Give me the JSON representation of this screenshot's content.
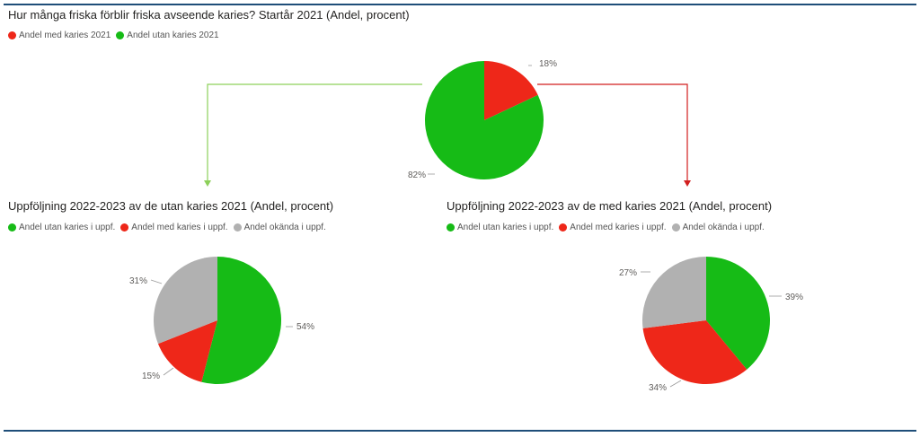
{
  "colors": {
    "green": "#16bb16",
    "red": "#ee2719",
    "gray": "#b1b1b1",
    "rule": "#1f4e79",
    "arrow_left": "#8dd05a",
    "arrow_right": "#d21f1f"
  },
  "chart_data": [
    {
      "type": "pie",
      "title": "Hur många friska förblir friska avseende karies? Startår 2021 (Andel, procent)",
      "legend": [
        "Andel med karies 2021",
        "Andel utan karies 2021"
      ],
      "legend_placement": "top-left",
      "slices": [
        {
          "name": "Andel med karies 2021",
          "value": 18,
          "label": "18%",
          "color": "#ee2719"
        },
        {
          "name": "Andel utan karies 2021",
          "value": 82,
          "label": "82%",
          "color": "#16bb16"
        }
      ]
    },
    {
      "type": "pie",
      "title": "Uppföljning 2022-2023 av de utan karies 2021 (Andel, procent)",
      "legend": [
        "Andel utan karies i uppf.",
        "Andel med karies i uppf.",
        "Andel okända i uppf."
      ],
      "legend_placement": "top-left",
      "slices": [
        {
          "name": "Andel utan karies i uppf.",
          "value": 54,
          "label": "54%",
          "color": "#16bb16"
        },
        {
          "name": "Andel med karies i uppf.",
          "value": 15,
          "label": "15%",
          "color": "#ee2719"
        },
        {
          "name": "Andel okända i uppf.",
          "value": 31,
          "label": "31%",
          "color": "#b1b1b1"
        }
      ]
    },
    {
      "type": "pie",
      "title": "Uppföljning 2022-2023 av de med karies 2021 (Andel, procent)",
      "legend": [
        "Andel utan karies i uppf.",
        "Andel med karies i uppf.",
        "Andel okända i uppf."
      ],
      "legend_placement": "top-left",
      "slices": [
        {
          "name": "Andel utan karies i uppf.",
          "value": 39,
          "label": "39%",
          "color": "#16bb16"
        },
        {
          "name": "Andel med karies i uppf.",
          "value": 34,
          "label": "34%",
          "color": "#ee2719"
        },
        {
          "name": "Andel okända i uppf.",
          "value": 27,
          "label": "27%",
          "color": "#b1b1b1"
        }
      ]
    }
  ]
}
